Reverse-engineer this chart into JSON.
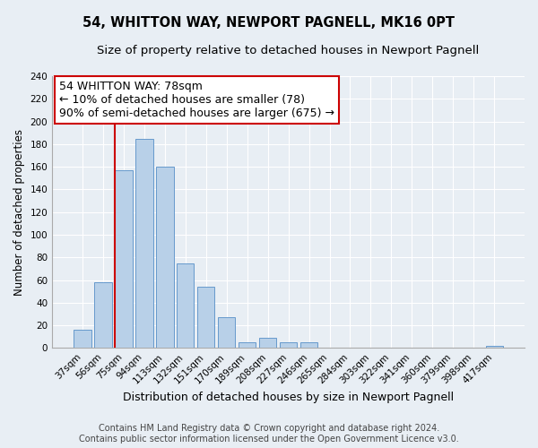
{
  "title": "54, WHITTON WAY, NEWPORT PAGNELL, MK16 0PT",
  "subtitle": "Size of property relative to detached houses in Newport Pagnell",
  "xlabel": "Distribution of detached houses by size in Newport Pagnell",
  "ylabel": "Number of detached properties",
  "bar_labels": [
    "37sqm",
    "56sqm",
    "75sqm",
    "94sqm",
    "113sqm",
    "132sqm",
    "151sqm",
    "170sqm",
    "189sqm",
    "208sqm",
    "227sqm",
    "246sqm",
    "265sqm",
    "284sqm",
    "303sqm",
    "322sqm",
    "341sqm",
    "360sqm",
    "379sqm",
    "398sqm",
    "417sqm"
  ],
  "bar_values": [
    16,
    58,
    157,
    185,
    160,
    75,
    54,
    27,
    5,
    9,
    5,
    5,
    0,
    0,
    0,
    0,
    0,
    0,
    0,
    0,
    2
  ],
  "bar_color": "#b8d0e8",
  "bar_edge_color": "#6699cc",
  "vline_color": "#cc0000",
  "annotation_line1": "54 WHITTON WAY: 78sqm",
  "annotation_line2": "← 10% of detached houses are smaller (78)",
  "annotation_line3": "90% of semi-detached houses are larger (675) →",
  "ylim": [
    0,
    240
  ],
  "yticks": [
    0,
    20,
    40,
    60,
    80,
    100,
    120,
    140,
    160,
    180,
    200,
    220,
    240
  ],
  "footer_text": "Contains HM Land Registry data © Crown copyright and database right 2024.\nContains public sector information licensed under the Open Government Licence v3.0.",
  "bg_color": "#e8eef4",
  "plot_bg_color": "#e8eef4",
  "grid_color": "#ffffff",
  "title_fontsize": 10.5,
  "subtitle_fontsize": 9.5,
  "xlabel_fontsize": 9,
  "ylabel_fontsize": 8.5,
  "tick_fontsize": 7.5,
  "annotation_fontsize": 9,
  "footer_fontsize": 7
}
